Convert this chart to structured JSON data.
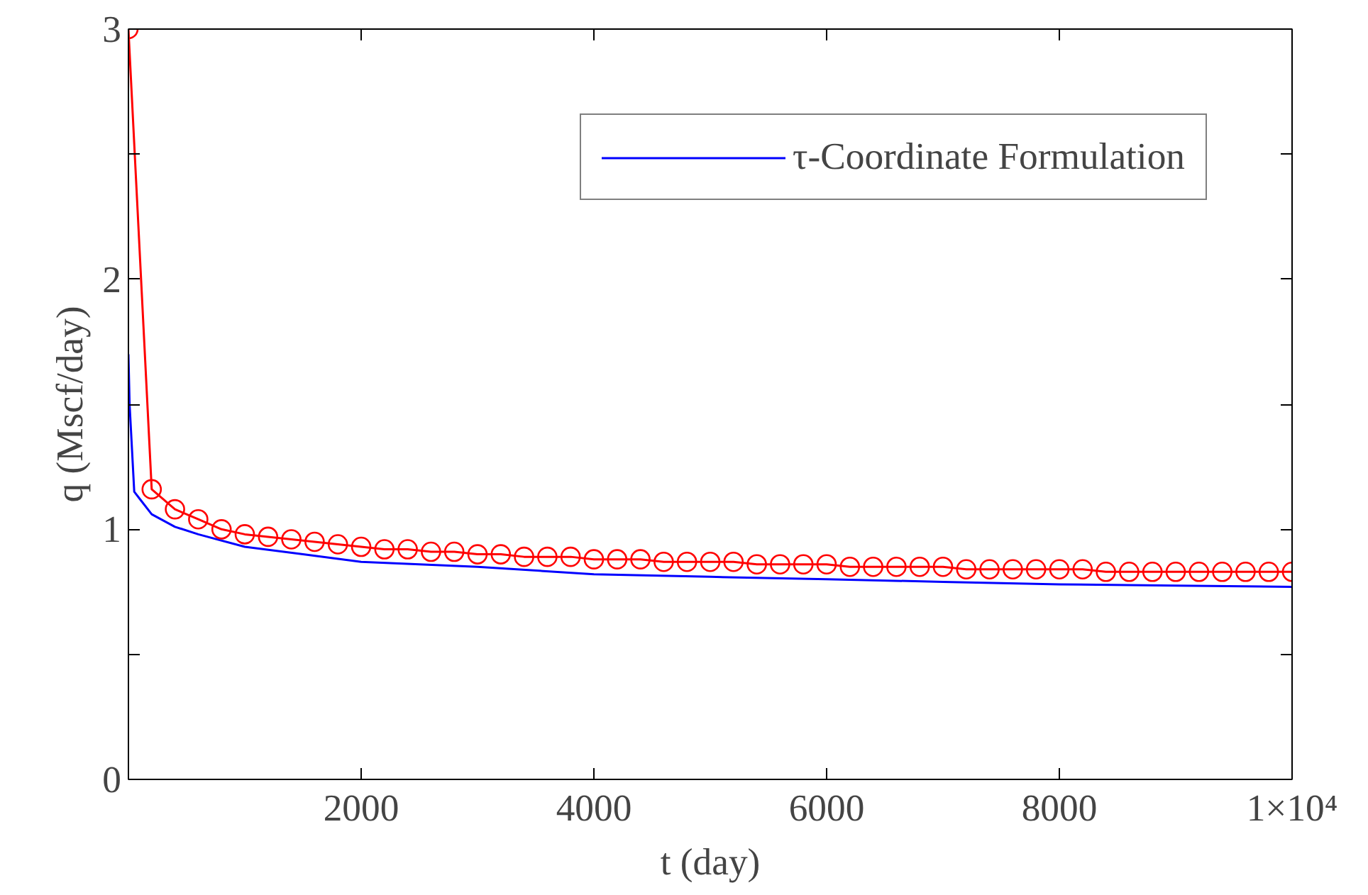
{
  "chart_data": {
    "type": "line",
    "xlabel": "t (day)",
    "ylabel": "q (Mscf/day)",
    "xlim": [
      0,
      10000
    ],
    "ylim": [
      0,
      3
    ],
    "xticks": [
      2000,
      4000,
      6000,
      8000,
      {
        "value": 10000,
        "label": "1×10⁴"
      }
    ],
    "yticks": [
      0,
      {
        "value": 0.5,
        "label": null
      },
      1,
      {
        "value": 1.5,
        "label": null
      },
      2,
      {
        "value": 2.5,
        "label": null
      },
      3
    ],
    "grid": false,
    "legend": "top right",
    "series": [
      {
        "name": "τ-Coordinate Formulation",
        "color": "#0000ff",
        "marker": "none",
        "x": [
          0,
          10,
          50,
          100,
          200,
          400,
          600,
          1000,
          1500,
          2000,
          3000,
          4000,
          5000,
          6000,
          7000,
          8000,
          9000,
          10000
        ],
        "values": [
          1.7,
          1.5,
          1.15,
          1.12,
          1.06,
          1.01,
          0.98,
          0.93,
          0.9,
          0.87,
          0.85,
          0.82,
          0.81,
          0.8,
          0.79,
          0.78,
          0.775,
          0.77
        ]
      },
      {
        "color": "#ff0000",
        "marker": "circle",
        "x": [
          0,
          200,
          400,
          600,
          800,
          1000,
          1200,
          1400,
          1600,
          1800,
          2000,
          2200,
          2400,
          2600,
          2800,
          3000,
          3200,
          3400,
          3600,
          3800,
          4000,
          4200,
          4400,
          4600,
          4800,
          5000,
          5200,
          5400,
          5600,
          5800,
          6000,
          6200,
          6400,
          6600,
          6800,
          7000,
          7200,
          7400,
          7600,
          7800,
          8000,
          8200,
          8400,
          8600,
          8800,
          9000,
          9200,
          9400,
          9600,
          9800,
          10000
        ],
        "values": [
          3.0,
          1.16,
          1.08,
          1.04,
          1.0,
          0.98,
          0.97,
          0.96,
          0.95,
          0.94,
          0.93,
          0.92,
          0.92,
          0.91,
          0.91,
          0.9,
          0.9,
          0.89,
          0.89,
          0.89,
          0.88,
          0.88,
          0.88,
          0.87,
          0.87,
          0.87,
          0.87,
          0.86,
          0.86,
          0.86,
          0.86,
          0.85,
          0.85,
          0.85,
          0.85,
          0.85,
          0.84,
          0.84,
          0.84,
          0.84,
          0.84,
          0.84,
          0.83,
          0.83,
          0.83,
          0.83,
          0.83,
          0.83,
          0.83,
          0.83,
          0.83
        ]
      }
    ]
  }
}
